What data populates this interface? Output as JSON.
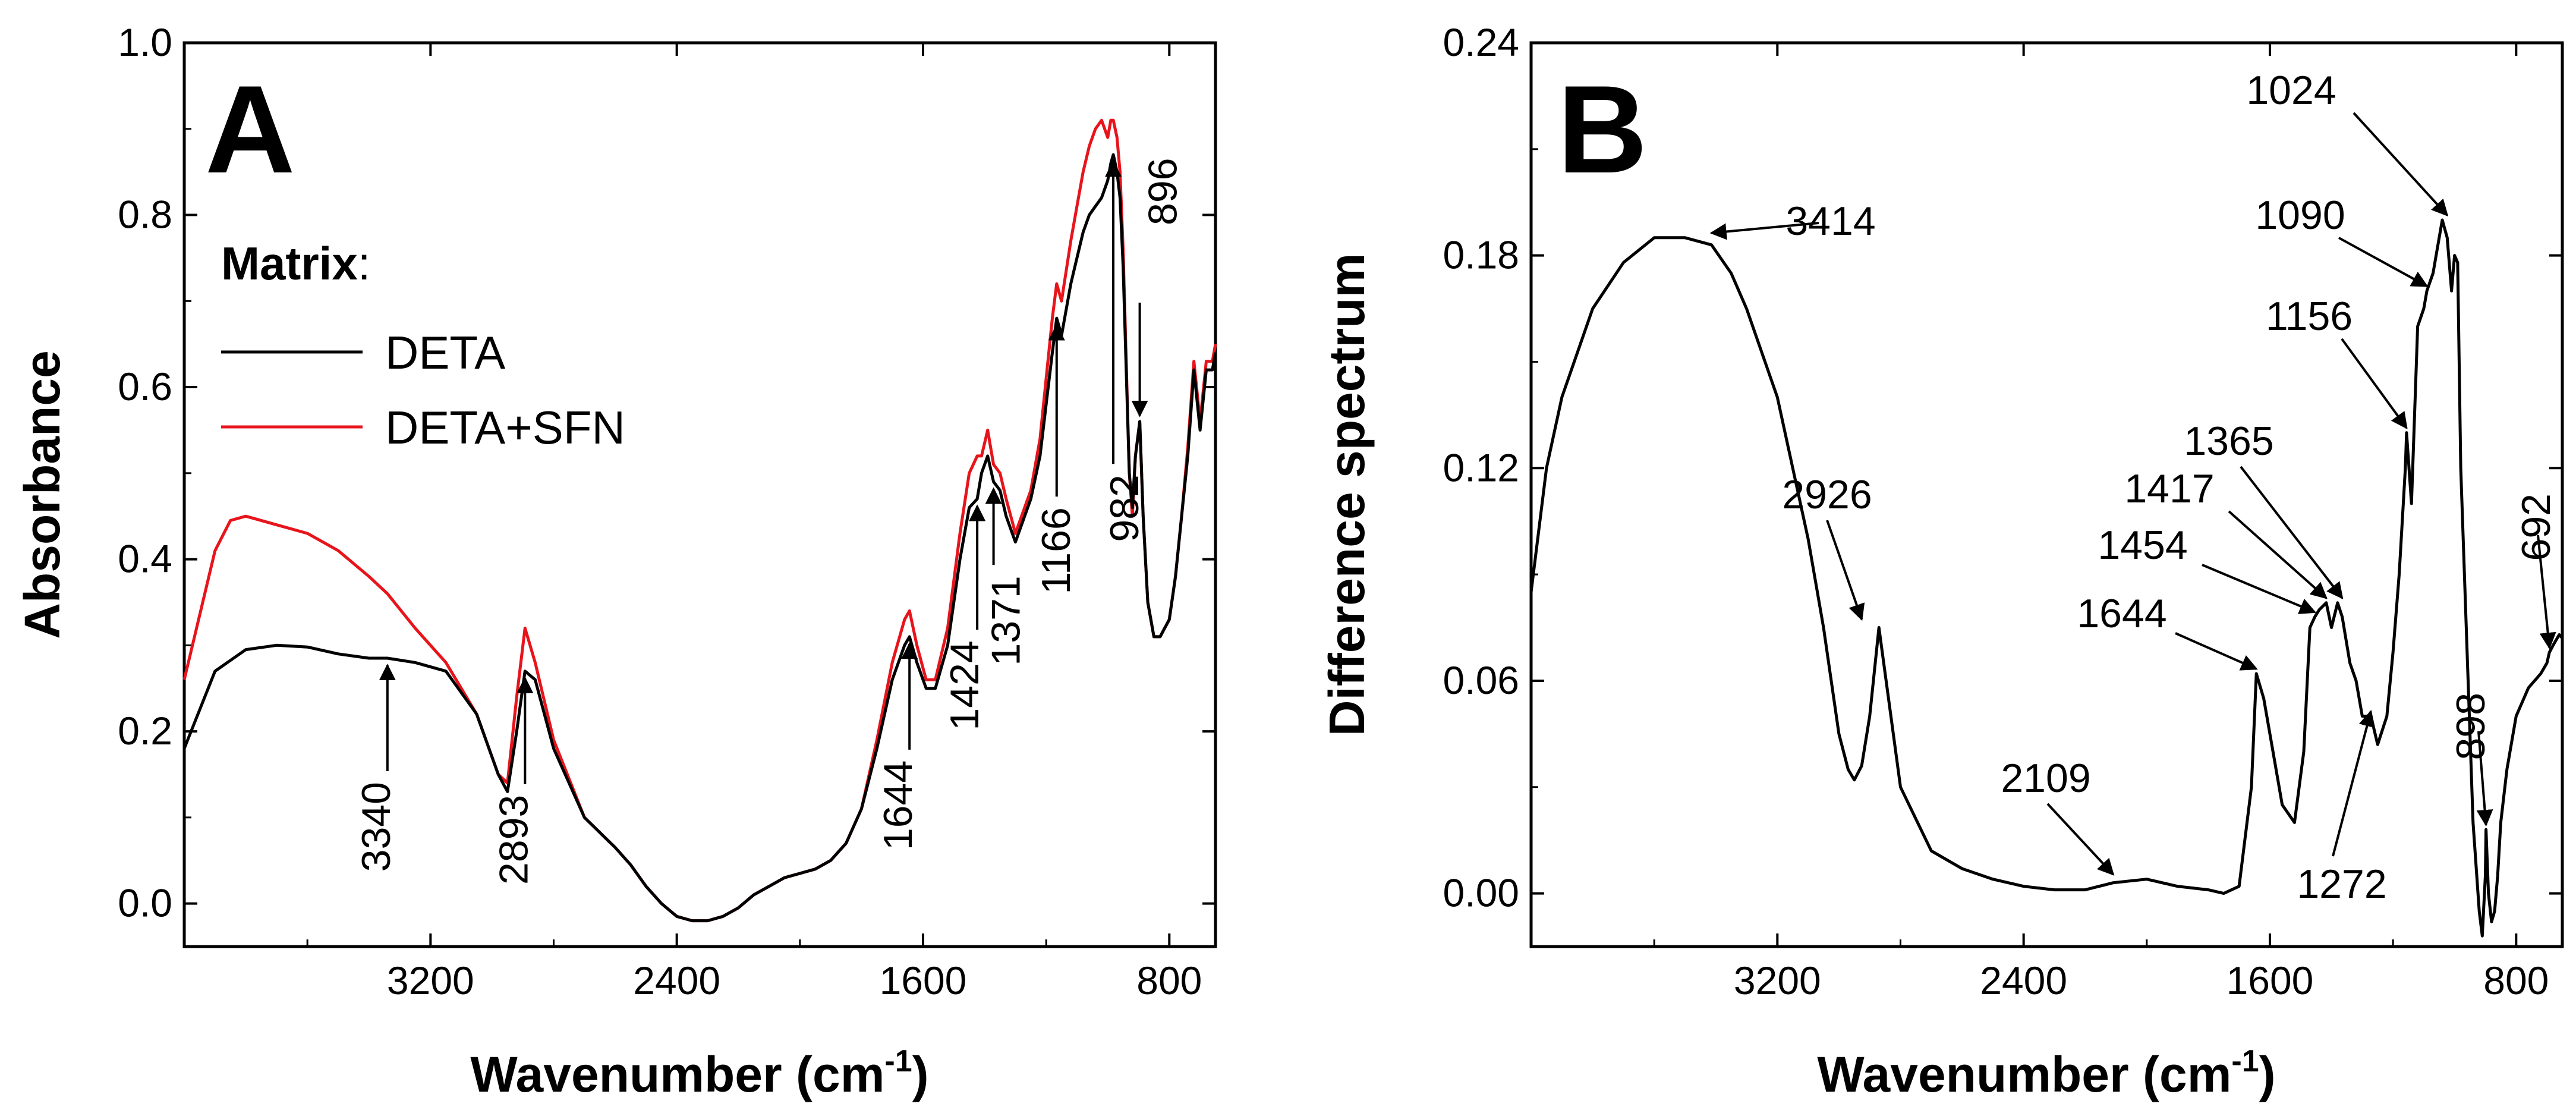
{
  "chart_data": [
    {
      "type": "line",
      "panel_label": "A",
      "xlabel": "Wavenumber (cm",
      "xlabel_sup": "-1",
      "xlabel_end": ")",
      "ylabel": "Absorbance",
      "xlim": [
        4000,
        650
      ],
      "ylim": [
        -0.05,
        1.0
      ],
      "xticks": [
        3200,
        2400,
        1600,
        800
      ],
      "xtick_labels": [
        "3200",
        "2400",
        "1600",
        "800"
      ],
      "yticks": [
        0.0,
        0.2,
        0.4,
        0.6,
        0.8,
        1.0
      ],
      "ytick_labels": [
        "0.0",
        "0.2",
        "0.4",
        "0.6",
        "0.8",
        "1.0"
      ],
      "legend": {
        "title_bold": "Matrix",
        "title_rest": ":",
        "entries": [
          {
            "name": "DETA",
            "color": "#000000"
          },
          {
            "name": "DETA+SFN",
            "color": "#e8141c"
          }
        ]
      },
      "series": [
        {
          "name": "DETA",
          "color": "#000000",
          "x": [
            4000,
            3900,
            3800,
            3700,
            3600,
            3500,
            3400,
            3340,
            3250,
            3150,
            3050,
            2980,
            2950,
            2920,
            2893,
            2860,
            2800,
            2700,
            2600,
            2550,
            2500,
            2450,
            2400,
            2350,
            2300,
            2250,
            2200,
            2150,
            2100,
            2050,
            2000,
            1950,
            1900,
            1850,
            1800,
            1750,
            1700,
            1660,
            1644,
            1620,
            1590,
            1560,
            1520,
            1480,
            1450,
            1424,
            1410,
            1390,
            1371,
            1350,
            1330,
            1300,
            1270,
            1250,
            1220,
            1200,
            1180,
            1166,
            1150,
            1120,
            1100,
            1080,
            1060,
            1040,
            1020,
            1000,
            990,
            982,
            970,
            960,
            950,
            940,
            930,
            920,
            910,
            896,
            885,
            870,
            850,
            830,
            800,
            780,
            760,
            740,
            720,
            700,
            680,
            660,
            650
          ],
          "y": [
            0.18,
            0.27,
            0.295,
            0.3,
            0.298,
            0.29,
            0.285,
            0.285,
            0.28,
            0.27,
            0.22,
            0.15,
            0.13,
            0.2,
            0.27,
            0.26,
            0.18,
            0.1,
            0.065,
            0.045,
            0.02,
            0.0,
            -0.015,
            -0.02,
            -0.02,
            -0.015,
            -0.005,
            0.01,
            0.02,
            0.03,
            0.035,
            0.04,
            0.05,
            0.07,
            0.11,
            0.18,
            0.26,
            0.3,
            0.31,
            0.28,
            0.25,
            0.25,
            0.3,
            0.4,
            0.46,
            0.47,
            0.5,
            0.52,
            0.49,
            0.48,
            0.45,
            0.42,
            0.45,
            0.47,
            0.52,
            0.58,
            0.64,
            0.68,
            0.66,
            0.72,
            0.75,
            0.78,
            0.8,
            0.81,
            0.82,
            0.84,
            0.86,
            0.87,
            0.85,
            0.82,
            0.74,
            0.62,
            0.5,
            0.46,
            0.52,
            0.56,
            0.45,
            0.35,
            0.31,
            0.31,
            0.33,
            0.38,
            0.45,
            0.52,
            0.62,
            0.55,
            0.62,
            0.62,
            0.64
          ]
        },
        {
          "name": "DETA+SFN",
          "color": "#e8141c",
          "x": [
            4000,
            3900,
            3850,
            3800,
            3700,
            3600,
            3500,
            3400,
            3340,
            3250,
            3150,
            3050,
            2980,
            2950,
            2920,
            2893,
            2860,
            2800,
            2700,
            2600,
            2550,
            2500,
            2450,
            2400,
            2350,
            2300,
            2250,
            2200,
            2150,
            2100,
            2050,
            2000,
            1950,
            1900,
            1850,
            1800,
            1750,
            1700,
            1660,
            1644,
            1620,
            1590,
            1560,
            1520,
            1480,
            1450,
            1424,
            1410,
            1390,
            1371,
            1350,
            1330,
            1300,
            1270,
            1250,
            1220,
            1200,
            1180,
            1166,
            1150,
            1120,
            1100,
            1080,
            1060,
            1040,
            1020,
            1000,
            990,
            982,
            970,
            960,
            950,
            940,
            930,
            920,
            910,
            896,
            885,
            870,
            850,
            830,
            800,
            780,
            760,
            740,
            720,
            700,
            680,
            660,
            650
          ],
          "y": [
            0.26,
            0.41,
            0.445,
            0.45,
            0.44,
            0.43,
            0.41,
            0.38,
            0.36,
            0.32,
            0.28,
            0.22,
            0.15,
            0.14,
            0.24,
            0.32,
            0.28,
            0.19,
            0.1,
            0.065,
            0.045,
            0.02,
            0.0,
            -0.015,
            -0.02,
            -0.02,
            -0.015,
            -0.005,
            0.01,
            0.02,
            0.03,
            0.035,
            0.04,
            0.05,
            0.07,
            0.11,
            0.19,
            0.28,
            0.33,
            0.34,
            0.3,
            0.26,
            0.26,
            0.32,
            0.43,
            0.5,
            0.52,
            0.52,
            0.55,
            0.51,
            0.5,
            0.47,
            0.43,
            0.46,
            0.48,
            0.54,
            0.61,
            0.68,
            0.72,
            0.7,
            0.77,
            0.81,
            0.85,
            0.88,
            0.9,
            0.91,
            0.89,
            0.91,
            0.91,
            0.89,
            0.85,
            0.76,
            0.63,
            0.5,
            0.45,
            0.52,
            0.56,
            0.45,
            0.35,
            0.31,
            0.31,
            0.33,
            0.38,
            0.45,
            0.53,
            0.63,
            0.56,
            0.63,
            0.63,
            0.65
          ]
        }
      ],
      "annotations": [
        {
          "text": "3340",
          "x": 3340,
          "y": 0.285
        },
        {
          "text": "2893",
          "x": 2893,
          "y": 0.27
        },
        {
          "text": "1644",
          "x": 1644,
          "y": 0.31
        },
        {
          "text": "1424",
          "x": 1424,
          "y": 0.47
        },
        {
          "text": "1371",
          "x": 1371,
          "y": 0.49
        },
        {
          "text": "1166",
          "x": 1166,
          "y": 0.68
        },
        {
          "text": "982",
          "x": 982,
          "y": 0.87
        },
        {
          "text": "896",
          "x": 896,
          "y": 0.56
        }
      ]
    },
    {
      "type": "line",
      "panel_label": "B",
      "xlabel": "Wavenumber (cm",
      "xlabel_sup": "-1",
      "xlabel_end": ")",
      "ylabel": "Difference spectrum",
      "xlim": [
        4000,
        650
      ],
      "ylim": [
        -0.015,
        0.24
      ],
      "xticks": [
        3200,
        2400,
        1600,
        800
      ],
      "xtick_labels": [
        "3200",
        "2400",
        "1600",
        "800"
      ],
      "yticks": [
        0.0,
        0.06,
        0.12,
        0.18,
        0.24
      ],
      "ytick_labels": [
        "0.00",
        "0.06",
        "0.12",
        "0.18",
        "0.24"
      ],
      "series": [
        {
          "name": "Difference spectrum",
          "color": "#000000",
          "x": [
            4000,
            3950,
            3900,
            3800,
            3700,
            3600,
            3500,
            3414,
            3350,
            3300,
            3200,
            3100,
            3050,
            3000,
            2970,
            2950,
            2926,
            2900,
            2870,
            2800,
            2700,
            2600,
            2500,
            2400,
            2300,
            2200,
            2109,
            2000,
            1900,
            1800,
            1750,
            1700,
            1660,
            1644,
            1620,
            1590,
            1560,
            1520,
            1490,
            1470,
            1454,
            1440,
            1417,
            1400,
            1380,
            1365,
            1340,
            1320,
            1300,
            1272,
            1250,
            1220,
            1200,
            1180,
            1160,
            1156,
            1140,
            1120,
            1100,
            1090,
            1070,
            1050,
            1040,
            1024,
            1010,
            1000,
            990,
            980,
            960,
            940,
            920,
            910,
            900,
            898,
            890,
            880,
            870,
            860,
            850,
            830,
            800,
            760,
            720,
            700,
            692,
            680,
            660,
            650
          ],
          "y": [
            0.085,
            0.12,
            0.14,
            0.165,
            0.178,
            0.185,
            0.185,
            0.183,
            0.175,
            0.165,
            0.14,
            0.1,
            0.075,
            0.045,
            0.035,
            0.032,
            0.036,
            0.05,
            0.075,
            0.03,
            0.012,
            0.007,
            0.004,
            0.002,
            0.001,
            0.001,
            0.003,
            0.004,
            0.002,
            0.001,
            0.0,
            0.002,
            0.03,
            0.062,
            0.055,
            0.04,
            0.025,
            0.02,
            0.04,
            0.075,
            0.078,
            0.08,
            0.082,
            0.075,
            0.082,
            0.078,
            0.065,
            0.06,
            0.05,
            0.05,
            0.042,
            0.05,
            0.068,
            0.09,
            0.12,
            0.13,
            0.11,
            0.16,
            0.165,
            0.17,
            0.175,
            0.185,
            0.19,
            0.185,
            0.17,
            0.18,
            0.178,
            0.12,
            0.07,
            0.02,
            -0.005,
            -0.012,
            0.005,
            0.018,
            0.0,
            -0.008,
            -0.005,
            0.005,
            0.02,
            0.035,
            0.05,
            0.058,
            0.062,
            0.065,
            0.068,
            0.07,
            0.073,
            0.072
          ]
        }
      ],
      "annotations": [
        {
          "text": "3414",
          "x": 3414,
          "y": 0.185
        },
        {
          "text": "2926",
          "x": 2926,
          "y": 0.076
        },
        {
          "text": "2109",
          "x": 2109,
          "y": 0.004
        },
        {
          "text": "1644",
          "x": 1644,
          "y": 0.062
        },
        {
          "text": "1454",
          "x": 1454,
          "y": 0.078
        },
        {
          "text": "1417",
          "x": 1417,
          "y": 0.082
        },
        {
          "text": "1365",
          "x": 1365,
          "y": 0.082
        },
        {
          "text": "1272",
          "x": 1272,
          "y": 0.05
        },
        {
          "text": "1156",
          "x": 1156,
          "y": 0.13
        },
        {
          "text": "1090",
          "x": 1090,
          "y": 0.17
        },
        {
          "text": "1024",
          "x": 1024,
          "y": 0.19
        },
        {
          "text": "898",
          "x": 898,
          "y": 0.018
        },
        {
          "text": "692",
          "x": 692,
          "y": 0.068
        }
      ]
    }
  ]
}
